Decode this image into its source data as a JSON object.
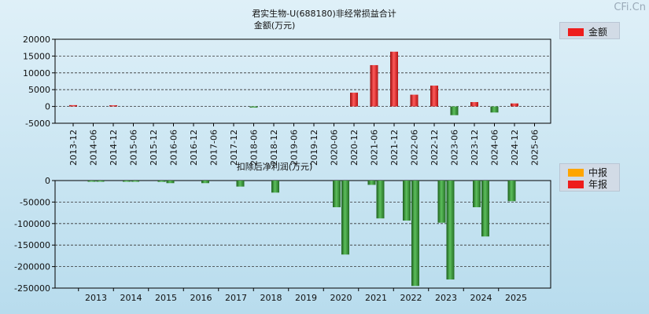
{
  "watermark": "CFi.Cn",
  "colors": {
    "red": "#ee1c1c",
    "orange": "#ffa500",
    "green": "#2e8b2e",
    "grid": "#333333"
  },
  "chart_data": [
    {
      "type": "bar",
      "title": "君实生物-U(688180)非经常损益合计",
      "subtitle": "金额(万元)",
      "legend": [
        {
          "name": "金额",
          "color": "#ee1c1c"
        }
      ],
      "ylim": [
        -5000,
        20000
      ],
      "yticks": [
        -5000,
        0,
        5000,
        10000,
        15000,
        20000
      ],
      "categories": [
        "2013-12",
        "2014-06",
        "2014-12",
        "2015-06",
        "2015-12",
        "2016-06",
        "2016-12",
        "2017-06",
        "2017-12",
        "2018-06",
        "2018-12",
        "2019-06",
        "2019-12",
        "2020-06",
        "2020-12",
        "2021-06",
        "2021-12",
        "2022-06",
        "2022-12",
        "2023-06",
        "2023-12",
        "2024-06",
        "2024-12",
        "2025-06"
      ],
      "values": [
        400,
        null,
        350,
        null,
        null,
        null,
        null,
        null,
        null,
        -150,
        null,
        null,
        null,
        null,
        4100,
        12300,
        16300,
        3500,
        6200,
        -2600,
        1300,
        -1800,
        900,
        null
      ]
    },
    {
      "type": "bar",
      "title": "扣除后净利润(万元)",
      "legend": [
        {
          "name": "中报",
          "color": "#ffa500"
        },
        {
          "name": "年报",
          "color": "#ee1c1c"
        }
      ],
      "ylim": [
        -250000,
        0
      ],
      "yticks": [
        -250000,
        -200000,
        -150000,
        -100000,
        -50000,
        0
      ],
      "categories": [
        "2013",
        "2014",
        "2015",
        "2016",
        "2017",
        "2018",
        "2019",
        "2020",
        "2021",
        "2022",
        "2023",
        "2024",
        "2025"
      ],
      "series": [
        {
          "name": "中报",
          "values": [
            -1000,
            -1500,
            -3000,
            null,
            null,
            null,
            null,
            -62000,
            -10000,
            -93000,
            -98000,
            -62000,
            -48000
          ]
        },
        {
          "name": "年报",
          "values": [
            -1500,
            -2500,
            -6000,
            -6000,
            -14000,
            -28000,
            null,
            -172000,
            -88000,
            -245000,
            -230000,
            -130000,
            null
          ]
        }
      ]
    }
  ]
}
